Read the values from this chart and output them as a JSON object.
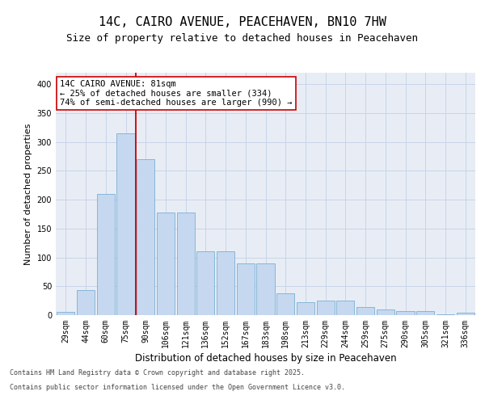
{
  "title": "14C, CAIRO AVENUE, PEACEHAVEN, BN10 7HW",
  "subtitle": "Size of property relative to detached houses in Peacehaven",
  "xlabel": "Distribution of detached houses by size in Peacehaven",
  "ylabel": "Number of detached properties",
  "categories": [
    "29sqm",
    "44sqm",
    "60sqm",
    "75sqm",
    "90sqm",
    "106sqm",
    "121sqm",
    "136sqm",
    "152sqm",
    "167sqm",
    "183sqm",
    "198sqm",
    "213sqm",
    "229sqm",
    "244sqm",
    "259sqm",
    "275sqm",
    "290sqm",
    "305sqm",
    "321sqm",
    "336sqm"
  ],
  "values": [
    5,
    43,
    210,
    315,
    270,
    178,
    178,
    110,
    110,
    90,
    90,
    38,
    22,
    25,
    25,
    14,
    10,
    7,
    7,
    2,
    4
  ],
  "bar_color": "#c5d8f0",
  "bar_edge_color": "#7bafd4",
  "vline_x": 3.5,
  "vline_color": "#cc0000",
  "annotation_text": "14C CAIRO AVENUE: 81sqm\n← 25% of detached houses are smaller (334)\n74% of semi-detached houses are larger (990) →",
  "annotation_box_color": "#ffffff",
  "annotation_box_edge_color": "#cc0000",
  "ylim": [
    0,
    420
  ],
  "yticks": [
    0,
    50,
    100,
    150,
    200,
    250,
    300,
    350,
    400
  ],
  "grid_color": "#c8d4e8",
  "background_color": "#e8edf5",
  "footer_line1": "Contains HM Land Registry data © Crown copyright and database right 2025.",
  "footer_line2": "Contains public sector information licensed under the Open Government Licence v3.0.",
  "title_fontsize": 11,
  "subtitle_fontsize": 9,
  "xlabel_fontsize": 8.5,
  "ylabel_fontsize": 8,
  "tick_fontsize": 7,
  "annotation_fontsize": 7.5,
  "footer_fontsize": 6
}
